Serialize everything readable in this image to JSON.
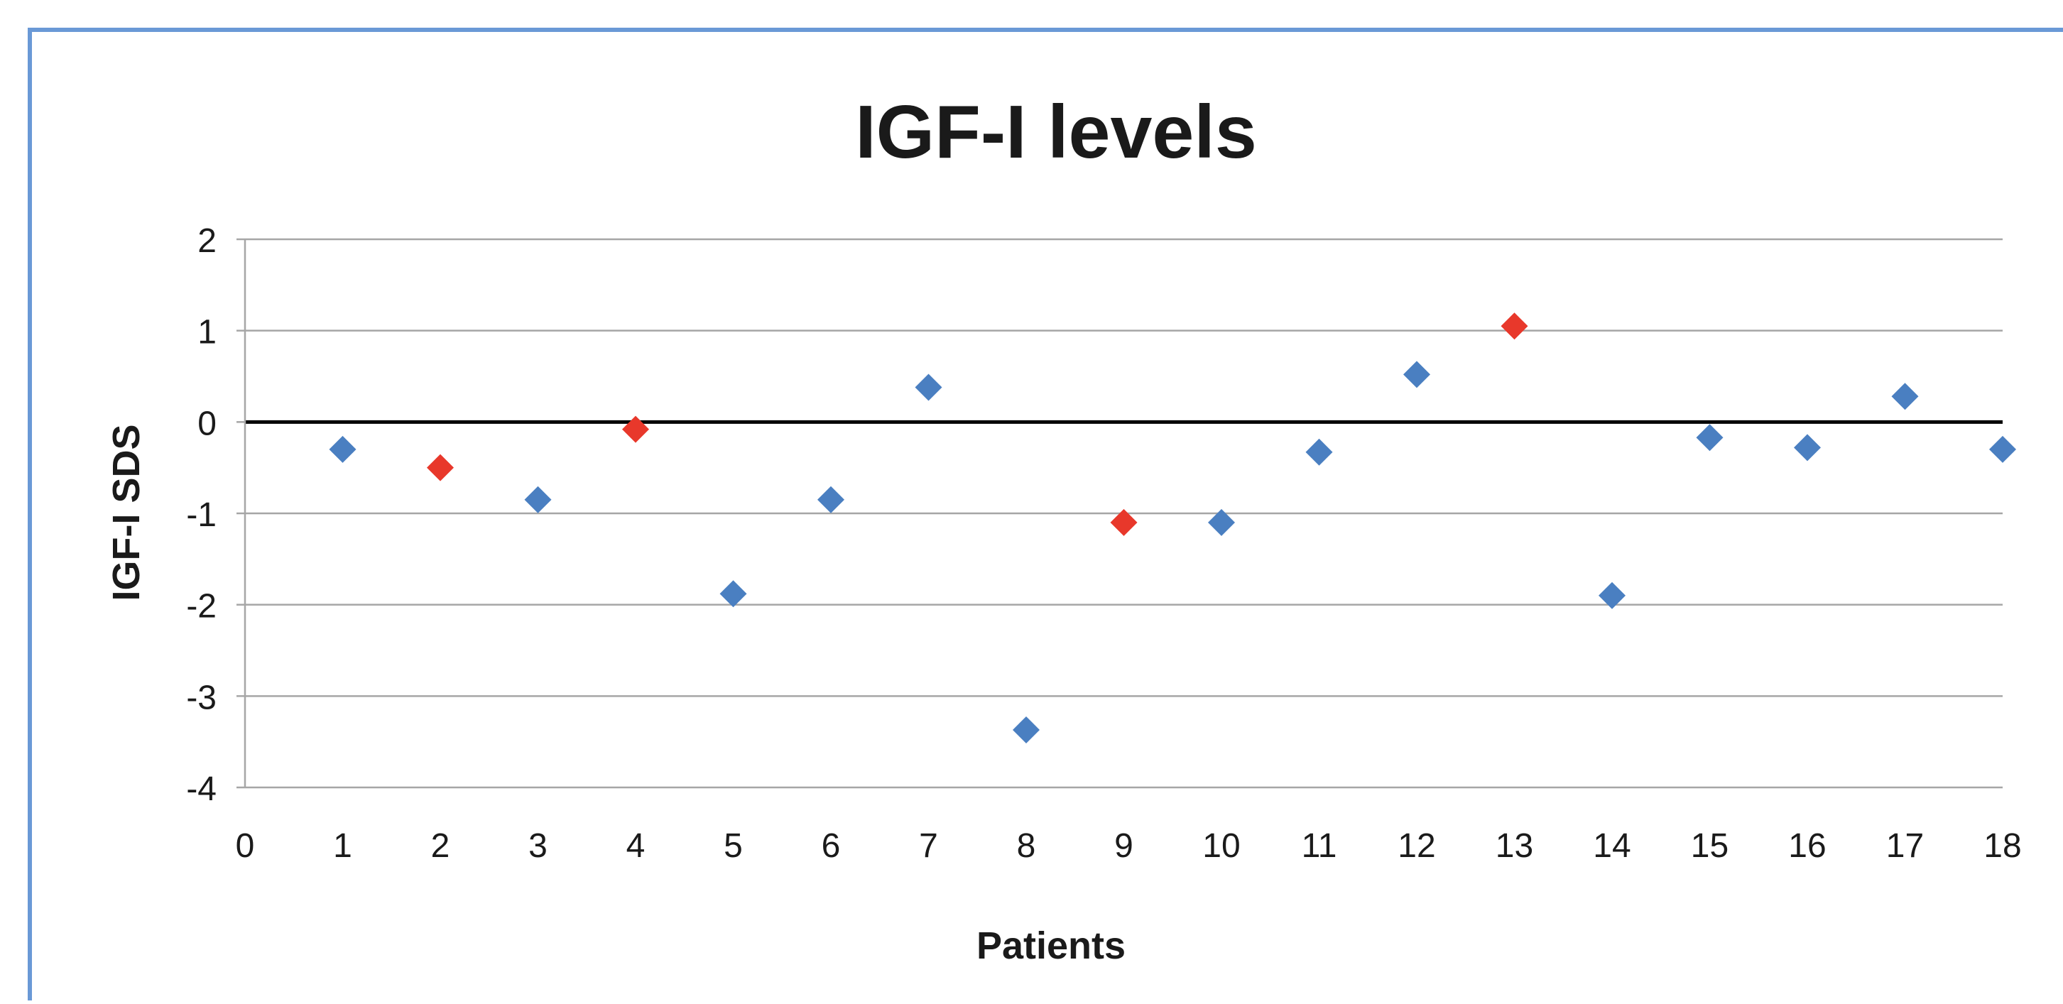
{
  "colors": {
    "border": "#6a99d6",
    "gridline": "#a6a6a6",
    "zero_line": "#000000",
    "series_blue": "#4a7fc1",
    "series_red": "#e8382b",
    "text": "#1a1a1a"
  },
  "chart_data": {
    "type": "scatter",
    "title": "IGF-I levels",
    "xlabel": "Patients",
    "ylabel": "IGF-I SDS",
    "xlim": [
      0,
      18
    ],
    "ylim": [
      -4,
      2
    ],
    "xticks": [
      0,
      1,
      2,
      3,
      4,
      5,
      6,
      7,
      8,
      9,
      10,
      11,
      12,
      13,
      14,
      15,
      16,
      17,
      18
    ],
    "yticks": [
      2,
      1,
      0,
      -1,
      -2,
      -3,
      -4
    ],
    "grid": true,
    "legend": "none",
    "marker": "diamond",
    "series": [
      {
        "color": "#4a7fc1",
        "points": [
          {
            "x": 1,
            "y": -0.3
          },
          {
            "x": 3,
            "y": -0.85
          },
          {
            "x": 5,
            "y": -1.88
          },
          {
            "x": 6,
            "y": -0.85
          },
          {
            "x": 7,
            "y": 0.38
          },
          {
            "x": 8,
            "y": -3.37
          },
          {
            "x": 10,
            "y": -1.1
          },
          {
            "x": 11,
            "y": -0.33
          },
          {
            "x": 12,
            "y": 0.52
          },
          {
            "x": 14,
            "y": -1.9
          },
          {
            "x": 15,
            "y": -0.17
          },
          {
            "x": 16,
            "y": -0.28
          },
          {
            "x": 17,
            "y": 0.28
          },
          {
            "x": 18,
            "y": -0.3
          }
        ]
      },
      {
        "color": "#e8382b",
        "points": [
          {
            "x": 2,
            "y": -0.5
          },
          {
            "x": 4,
            "y": -0.08
          },
          {
            "x": 9,
            "y": -1.1
          },
          {
            "x": 13,
            "y": 1.05
          }
        ]
      }
    ]
  }
}
